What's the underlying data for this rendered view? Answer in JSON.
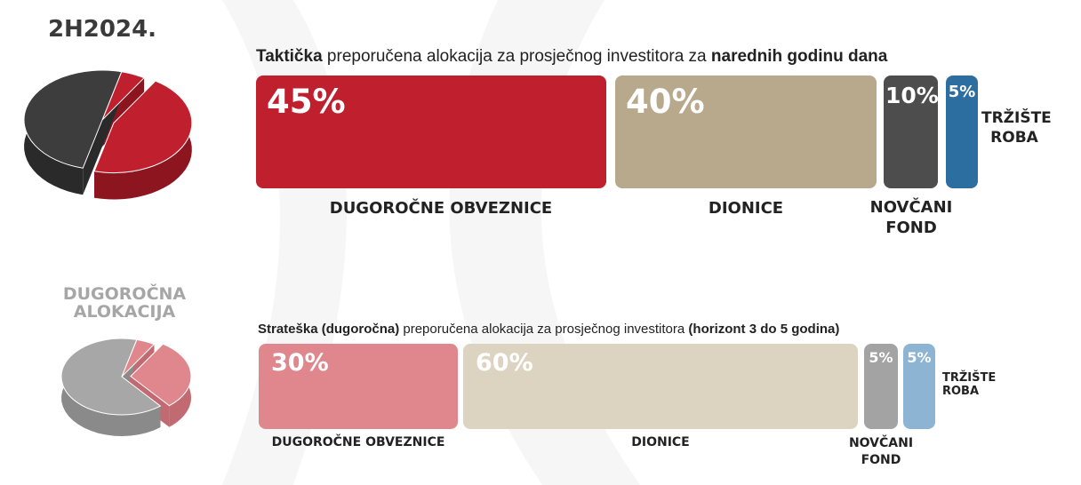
{
  "colors": {
    "dugorocne_tactical": "#c01f2e",
    "dionice_tactical": "#b9a98c",
    "novcani_tactical": "#4d4d4d",
    "trziste_tactical": "#2d6ea0",
    "dugorocne_strategic": "#e0878e",
    "dionice_strategic": "#ddd3c1",
    "novcani_strategic": "#a3a3a3",
    "trziste_strategic": "#8eb4d4",
    "pie_dark": "#3d3d3d",
    "pie_red": "#c01f2e",
    "pie_grey": "#a7a7a7",
    "pie_pink": "#e0878e"
  },
  "period_label": "2H2024.",
  "strategic_label": "DUGOROČNA ALOKACIJA",
  "chart_data": [
    {
      "type": "bar",
      "title_parts": [
        {
          "text": "Taktička",
          "bold": true
        },
        {
          "text": " preporučena alokacija za prosječnog investitora za ",
          "bold": false
        },
        {
          "text": "narednih godinu dana",
          "bold": true
        }
      ],
      "categories": [
        "DUGOROČNE OBVEZNICE",
        "DIONICE",
        "NOVČANI FOND",
        "TRŽIŠTE ROBA"
      ],
      "values": [
        45,
        40,
        10,
        5
      ],
      "value_labels": [
        "45%",
        "40%",
        "10%",
        "5%"
      ],
      "unit": "%"
    },
    {
      "type": "bar",
      "title_parts": [
        {
          "text": "Strateška (dugoročna)",
          "bold": true
        },
        {
          "text": " preporučena alokacija za prosječnog investitora ",
          "bold": false
        },
        {
          "text": "(horizont 3 do 5 godina)",
          "bold": true
        }
      ],
      "categories": [
        "DUGOROČNE OBVEZNICE",
        "DIONICE",
        "NOVČANI FOND",
        "TRŽIŠTE ROBA"
      ],
      "values": [
        30,
        60,
        5,
        5
      ],
      "value_labels": [
        "30%",
        "60%",
        "5%",
        "5%"
      ],
      "unit": "%"
    }
  ]
}
